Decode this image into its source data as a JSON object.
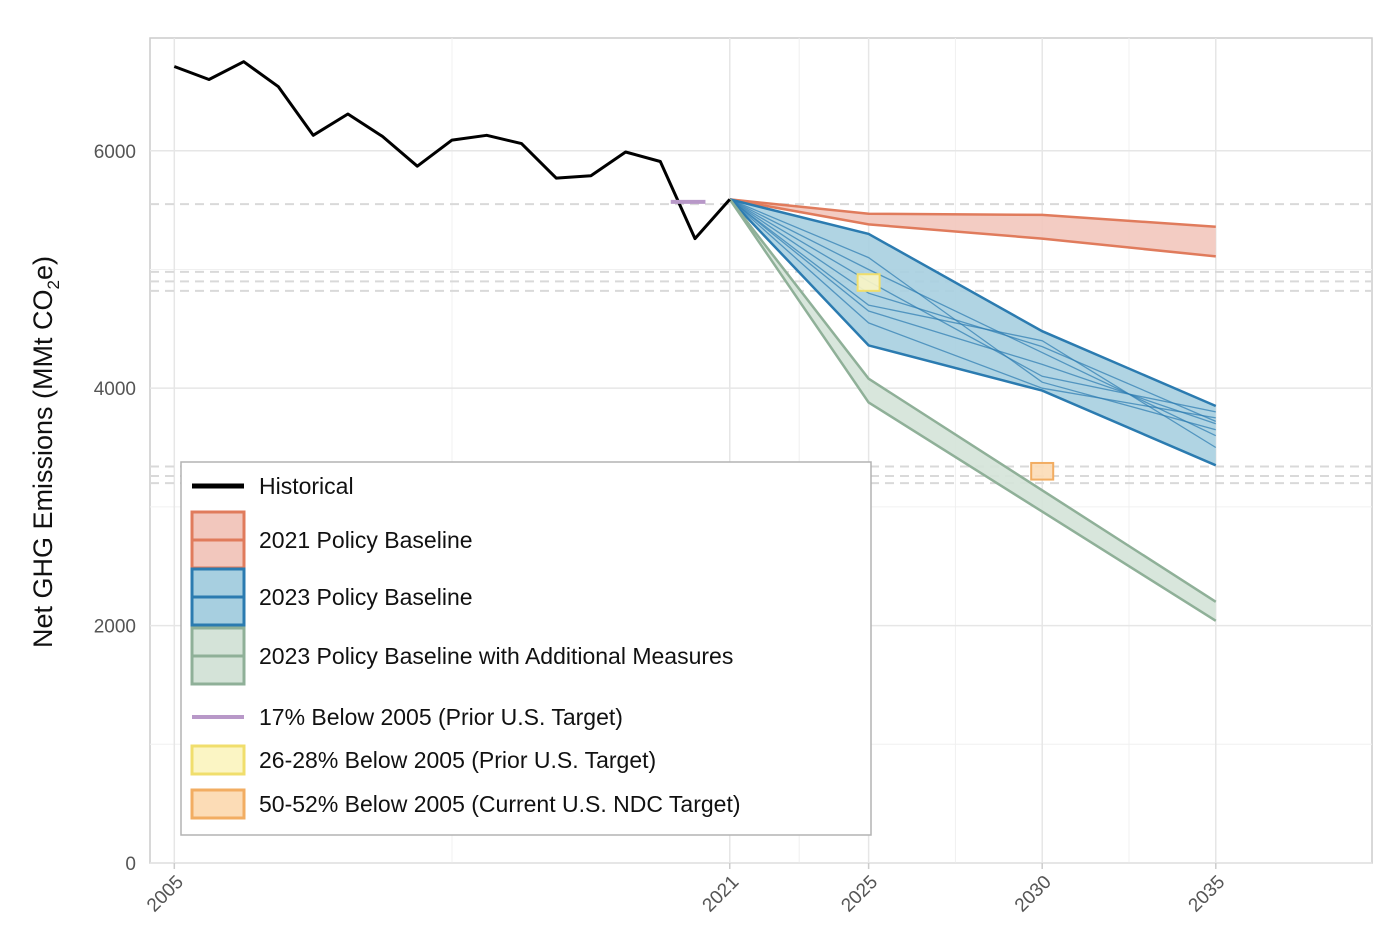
{
  "chart_data": {
    "type": "line",
    "title": "",
    "xlabel": "",
    "ylabel": "Net GHG Emissions (MMt CO",
    "ylabel_sub": "2",
    "ylabel_tail": "e)",
    "xlim": [
      2004.3,
      2039.5
    ],
    "ylim": [
      0,
      6950
    ],
    "x_ticks": [
      {
        "value": 2005,
        "label": "2005"
      },
      {
        "value": 2021,
        "label": "2021"
      },
      {
        "value": 2025,
        "label": "2025"
      },
      {
        "value": 2030,
        "label": "2030"
      },
      {
        "value": 2035,
        "label": "2035"
      }
    ],
    "x_minor_gridlines": [
      2013,
      2023,
      2027.5,
      2032.5
    ],
    "y_ticks": [
      {
        "value": 0,
        "label": "0"
      },
      {
        "value": 2000,
        "label": "2000"
      },
      {
        "value": 4000,
        "label": "4000"
      },
      {
        "value": 6000,
        "label": "6000"
      }
    ],
    "y_minor_gridlines": [
      1000,
      3000,
      5000
    ],
    "reference_lines": [
      5550,
      4980,
      4900,
      4820,
      3340,
      3260,
      3200
    ],
    "historical": {
      "name": "Historical",
      "color": "#000000",
      "x": [
        2005,
        2006,
        2007,
        2008,
        2009,
        2010,
        2011,
        2012,
        2013,
        2014,
        2015,
        2016,
        2017,
        2018,
        2019,
        2020,
        2021
      ],
      "y": [
        6710,
        6600,
        6750,
        6540,
        6130,
        6310,
        6120,
        5870,
        6090,
        6130,
        6060,
        5770,
        5790,
        5990,
        5910,
        5260,
        5590
      ]
    },
    "bands": [
      {
        "name": "2021 Policy Baseline",
        "fill": "#f2c7bd",
        "stroke": "#e07b5c",
        "x": [
          2021,
          2025,
          2030,
          2035
        ],
        "upper": [
          5590,
          5470,
          5460,
          5360
        ],
        "lower": [
          5590,
          5380,
          5260,
          5110
        ],
        "inner_lines": []
      },
      {
        "name": "2023 Policy Baseline",
        "fill": "#a7cfe0",
        "stroke": "#2b7bb0",
        "x": [
          2021,
          2025,
          2030,
          2035
        ],
        "upper": [
          5590,
          5300,
          4480,
          3850
        ],
        "lower": [
          5590,
          4360,
          3980,
          3350
        ],
        "inner_lines": [
          [
            5590,
            5000,
            4300,
            3600
          ],
          [
            5590,
            4900,
            4100,
            3800
          ],
          [
            5590,
            4700,
            4400,
            3500
          ],
          [
            5590,
            4650,
            4200,
            3700
          ],
          [
            5590,
            5100,
            4050,
            3650
          ],
          [
            5590,
            4800,
            4350,
            3720
          ],
          [
            5590,
            4550,
            4000,
            3750
          ]
        ]
      },
      {
        "name": "2023 Policy Baseline with Additional Measures",
        "fill": "#d4e3d8",
        "stroke": "#8fb098",
        "x": [
          2021,
          2025,
          2030,
          2035
        ],
        "upper": [
          5590,
          4080,
          3140,
          2200
        ],
        "lower": [
          5590,
          3880,
          2960,
          2040
        ],
        "inner_lines": []
      }
    ],
    "targets": [
      {
        "name": "17% Below 2005 (Prior U.S. Target)",
        "type": "line",
        "x_range": [
          2019.3,
          2020.3
        ],
        "y": 5570,
        "color": "#b898c8"
      },
      {
        "name": "26-28% Below 2005 (Prior U.S. Target)",
        "type": "box",
        "x": 2025,
        "y_range": [
          4820,
          4960
        ],
        "fill": "#fbf5c4",
        "stroke": "#f0de6c"
      },
      {
        "name": "50-52% Below 2005 (Current U.S. NDC Target)",
        "type": "box",
        "x": 2030,
        "y_range": [
          3230,
          3370
        ],
        "fill": "#fcdcb6",
        "stroke": "#f2ad62"
      }
    ],
    "legend": {
      "position": "bottom-left",
      "entries": [
        {
          "label": "Historical",
          "kind": "line",
          "color": "#000000"
        },
        {
          "label": "2021 Policy Baseline",
          "kind": "band",
          "fill": "#f2c7bd",
          "stroke": "#e07b5c"
        },
        {
          "label": "2023 Policy Baseline",
          "kind": "band",
          "fill": "#a7cfe0",
          "stroke": "#2b7bb0"
        },
        {
          "label": "2023 Policy Baseline with Additional Measures",
          "kind": "band",
          "fill": "#d4e3d8",
          "stroke": "#8fb098"
        },
        {
          "label": "17% Below 2005 (Prior U.S. Target)",
          "kind": "dash",
          "color": "#b898c8"
        },
        {
          "label": "26-28% Below 2005 (Prior U.S. Target)",
          "kind": "box",
          "fill": "#fbf5c4",
          "stroke": "#f0de6c"
        },
        {
          "label": "50-52% Below 2005 (Current U.S. NDC Target)",
          "kind": "box",
          "fill": "#fcdcb6",
          "stroke": "#f2ad62"
        }
      ]
    }
  }
}
